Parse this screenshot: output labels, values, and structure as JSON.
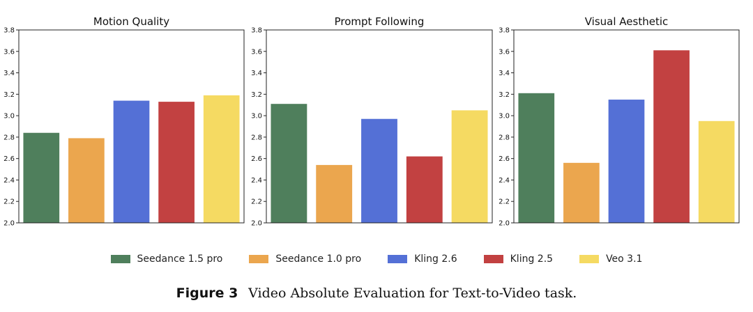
{
  "chart_data": [
    {
      "type": "bar",
      "title": "Motion Quality",
      "categories": [
        "Seedance 1.5 pro",
        "Seedance 1.0 pro",
        "Kling 2.6",
        "Kling 2.5",
        "Veo 3.1"
      ],
      "values": [
        2.84,
        2.79,
        3.14,
        3.13,
        3.19
      ],
      "ylim": [
        2.0,
        3.8
      ],
      "yticks": [
        "2.0",
        "2.2",
        "2.4",
        "2.6",
        "2.8",
        "3.0",
        "3.2",
        "3.4",
        "3.6",
        "3.8"
      ],
      "xlabel": "",
      "ylabel": "",
      "grid": false
    },
    {
      "type": "bar",
      "title": "Prompt Following",
      "categories": [
        "Seedance 1.5 pro",
        "Seedance 1.0 pro",
        "Kling 2.6",
        "Kling 2.5",
        "Veo 3.1"
      ],
      "values": [
        3.11,
        2.54,
        2.97,
        2.62,
        3.05
      ],
      "ylim": [
        2.0,
        3.8
      ],
      "yticks": [
        "2.0",
        "2.2",
        "2.4",
        "2.6",
        "2.8",
        "3.0",
        "3.2",
        "3.4",
        "3.6",
        "3.8"
      ],
      "xlabel": "",
      "ylabel": "",
      "grid": false
    },
    {
      "type": "bar",
      "title": "Visual Aesthetic",
      "categories": [
        "Seedance 1.5 pro",
        "Seedance 1.0 pro",
        "Kling 2.6",
        "Kling 2.5",
        "Veo 3.1"
      ],
      "values": [
        3.21,
        2.56,
        3.15,
        3.61,
        2.95
      ],
      "ylim": [
        2.0,
        3.8
      ],
      "yticks": [
        "2.0",
        "2.2",
        "2.4",
        "2.6",
        "2.8",
        "3.0",
        "3.2",
        "3.4",
        "3.6",
        "3.8"
      ],
      "xlabel": "",
      "ylabel": "",
      "grid": false
    }
  ],
  "legend": {
    "placement": "bottom-center",
    "items": [
      {
        "label": "Seedance 1.5 pro",
        "color": "#4f7f5c"
      },
      {
        "label": "Seedance 1.0 pro",
        "color": "#eba64e"
      },
      {
        "label": "Kling 2.6",
        "color": "#5470d6"
      },
      {
        "label": "Kling 2.5",
        "color": "#c24141"
      },
      {
        "label": "Veo 3.1",
        "color": "#f5da62"
      }
    ]
  },
  "caption": {
    "label": "Figure 3",
    "text": "Video Absolute Evaluation for Text-to-Video task."
  }
}
